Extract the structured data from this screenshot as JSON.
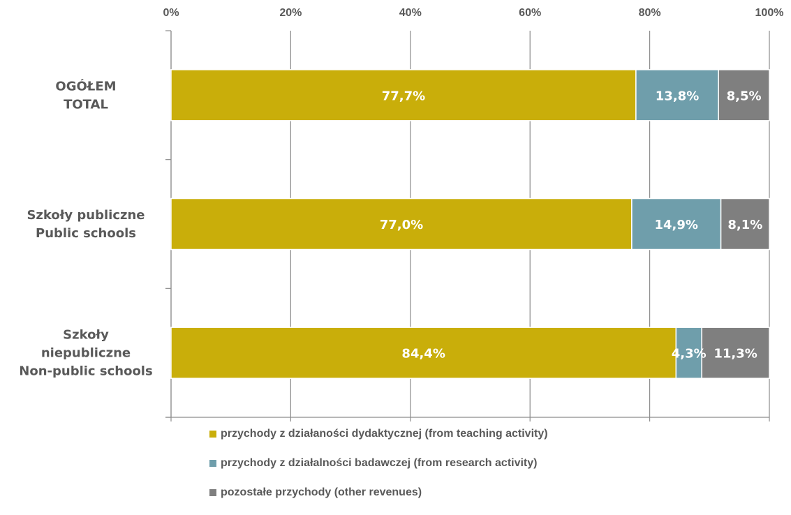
{
  "chart_data": {
    "type": "bar",
    "orientation": "horizontal",
    "stacked": "percent",
    "xaxis_position": "top",
    "x_ticks": [
      "0%",
      "20%",
      "40%",
      "60%",
      "80%",
      "100%"
    ],
    "xlim": [
      0,
      100
    ],
    "grid": true,
    "legend_position": "bottom",
    "categories": [
      [
        "OGÓŁEM",
        "TOTAL"
      ],
      [
        "Szkoły publiczne",
        "Public schools"
      ],
      [
        "Szkoły",
        "niepubliczne",
        "Non-public schools"
      ]
    ],
    "series": [
      {
        "name": "przychody z działaności dydaktycznej (from teaching activity)",
        "color": "#c9ae0a",
        "values": [
          77.7,
          77.0,
          84.4
        ],
        "labels": [
          "77,7%",
          "77,0%",
          "84,4%"
        ]
      },
      {
        "name": "przychody z działalności badawczej (from research activity)",
        "color": "#6f9eab",
        "values": [
          13.8,
          14.9,
          4.3
        ],
        "labels": [
          "13,8%",
          "14,9%",
          "4,3%"
        ]
      },
      {
        "name": "pozostałe przychody (other revenues)",
        "color": "#7f7f7f",
        "values": [
          8.5,
          8.1,
          11.3
        ],
        "labels": [
          "8,5%",
          "8,1%",
          "11,3%"
        ]
      }
    ]
  }
}
